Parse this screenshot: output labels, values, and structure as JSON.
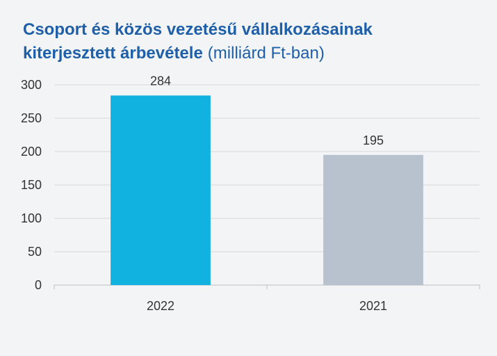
{
  "chart_data": {
    "type": "bar",
    "title": [
      "Csoport és közös vezetésű vállalkozásainak",
      "kiterjesztett árbevétele"
    ],
    "subtitle": "(milliárd Ft-ban)",
    "categories": [
      "2022",
      "2021"
    ],
    "values": [
      284,
      195
    ],
    "colors": [
      "#12b2e0",
      "#b8c2ce"
    ],
    "ylim": [
      0,
      300
    ],
    "yticks": [
      0,
      50,
      100,
      150,
      200,
      250,
      300
    ],
    "grid": true
  }
}
